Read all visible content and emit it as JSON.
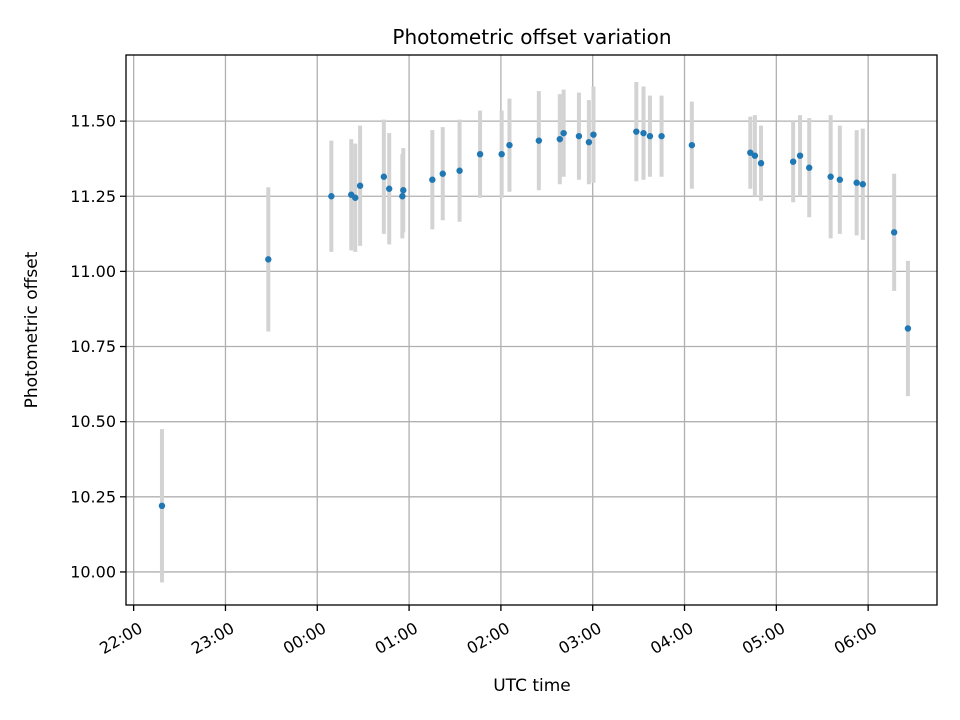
{
  "chart_data": {
    "type": "scatter",
    "title": "Photometric offset variation",
    "xlabel": "UTC time",
    "ylabel": "Photometric offset",
    "x_unit": "minutes after 22:00 UTC",
    "xlim": [
      -5,
      525
    ],
    "ylim": [
      9.89,
      11.72
    ],
    "grid": true,
    "x_ticks": [
      {
        "value": 0,
        "label": "22:00"
      },
      {
        "value": 60,
        "label": "23:00"
      },
      {
        "value": 120,
        "label": "00:00"
      },
      {
        "value": 180,
        "label": "01:00"
      },
      {
        "value": 240,
        "label": "02:00"
      },
      {
        "value": 300,
        "label": "03:00"
      },
      {
        "value": 360,
        "label": "04:00"
      },
      {
        "value": 420,
        "label": "05:00"
      },
      {
        "value": 480,
        "label": "06:00"
      }
    ],
    "y_ticks": [
      {
        "value": 10.0,
        "label": "10.00"
      },
      {
        "value": 10.25,
        "label": "10.25"
      },
      {
        "value": 10.5,
        "label": "10.50"
      },
      {
        "value": 10.75,
        "label": "10.75"
      },
      {
        "value": 11.0,
        "label": "11.00"
      },
      {
        "value": 11.25,
        "label": "11.25"
      },
      {
        "value": 11.5,
        "label": "11.50"
      }
    ],
    "marker_color": "#1f77b4",
    "errorbar_color": "#d3d3d3",
    "points": [
      {
        "x": 18.5,
        "y": 10.22,
        "err": 0.255
      },
      {
        "x": 88.0,
        "y": 11.04,
        "err": 0.24
      },
      {
        "x": 129.2,
        "y": 11.25,
        "err": 0.185
      },
      {
        "x": 142.2,
        "y": 11.255,
        "err": 0.185
      },
      {
        "x": 144.8,
        "y": 11.245,
        "err": 0.18
      },
      {
        "x": 148.0,
        "y": 11.285,
        "err": 0.2
      },
      {
        "x": 163.5,
        "y": 11.315,
        "err": 0.19
      },
      {
        "x": 167.0,
        "y": 11.275,
        "err": 0.185
      },
      {
        "x": 175.6,
        "y": 11.25,
        "err": 0.14
      },
      {
        "x": 176.2,
        "y": 11.27,
        "err": 0.14
      },
      {
        "x": 195.2,
        "y": 11.305,
        "err": 0.165
      },
      {
        "x": 202.0,
        "y": 11.325,
        "err": 0.155
      },
      {
        "x": 213.0,
        "y": 11.335,
        "err": 0.17
      },
      {
        "x": 226.4,
        "y": 11.39,
        "err": 0.145
      },
      {
        "x": 240.5,
        "y": 11.39,
        "err": 0.145
      },
      {
        "x": 245.6,
        "y": 11.42,
        "err": 0.155
      },
      {
        "x": 264.8,
        "y": 11.435,
        "err": 0.165
      },
      {
        "x": 278.5,
        "y": 11.44,
        "err": 0.15
      },
      {
        "x": 281.0,
        "y": 11.46,
        "err": 0.145
      },
      {
        "x": 291.0,
        "y": 11.45,
        "err": 0.145
      },
      {
        "x": 297.5,
        "y": 11.43,
        "err": 0.14
      },
      {
        "x": 300.5,
        "y": 11.455,
        "err": 0.16
      },
      {
        "x": 328.5,
        "y": 11.465,
        "err": 0.165
      },
      {
        "x": 333.2,
        "y": 11.46,
        "err": 0.155
      },
      {
        "x": 337.4,
        "y": 11.45,
        "err": 0.135
      },
      {
        "x": 345.0,
        "y": 11.45,
        "err": 0.135
      },
      {
        "x": 364.8,
        "y": 11.42,
        "err": 0.145
      },
      {
        "x": 403.0,
        "y": 11.395,
        "err": 0.12
      },
      {
        "x": 406.0,
        "y": 11.385,
        "err": 0.135
      },
      {
        "x": 410.0,
        "y": 11.36,
        "err": 0.125
      },
      {
        "x": 431.0,
        "y": 11.365,
        "err": 0.135
      },
      {
        "x": 435.5,
        "y": 11.385,
        "err": 0.135
      },
      {
        "x": 441.5,
        "y": 11.345,
        "err": 0.165
      },
      {
        "x": 455.5,
        "y": 11.315,
        "err": 0.205
      },
      {
        "x": 461.5,
        "y": 11.305,
        "err": 0.18
      },
      {
        "x": 472.5,
        "y": 11.295,
        "err": 0.175
      },
      {
        "x": 476.5,
        "y": 11.29,
        "err": 0.185
      },
      {
        "x": 497.0,
        "y": 11.13,
        "err": 0.195
      },
      {
        "x": 506.0,
        "y": 10.81,
        "err": 0.225
      }
    ]
  }
}
